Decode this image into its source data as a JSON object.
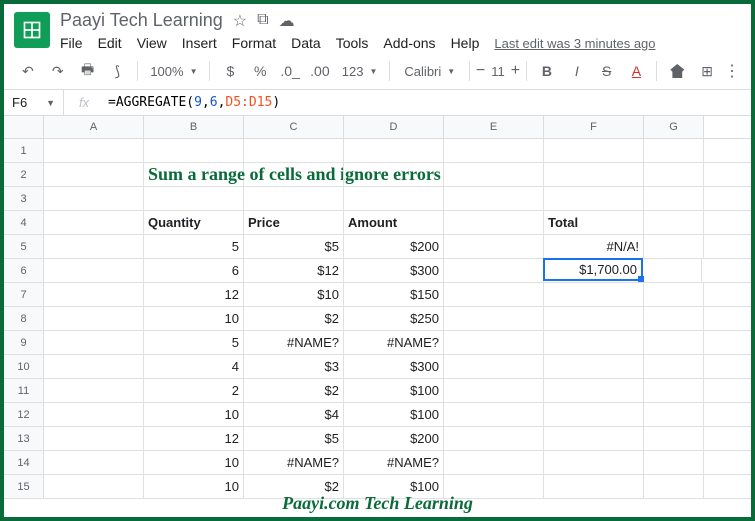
{
  "doc": {
    "title": "Paayi Tech Learning",
    "last_edit": "Last edit was 3 minutes ago"
  },
  "menu": [
    "File",
    "Edit",
    "View",
    "Insert",
    "Format",
    "Data",
    "Tools",
    "Add-ons",
    "Help"
  ],
  "toolbar": {
    "zoom": "100%",
    "font": "Calibri",
    "size": "11"
  },
  "formula_bar": {
    "cell_ref": "F6",
    "prefix": "=AGGREGATE(",
    "arg1": "9",
    "arg2": "6",
    "range": "D5:D15",
    "suffix": ")"
  },
  "columns": [
    "A",
    "B",
    "C",
    "D",
    "E",
    "F",
    "G"
  ],
  "col_widths": {
    "A": 100,
    "B": 100,
    "C": 100,
    "D": 100,
    "E": 100,
    "F": 100,
    "G": 60
  },
  "title_text": "Sum a range of cells and ignore errors",
  "headers": {
    "B": "Quantity",
    "C": "Price",
    "D": "Amount",
    "F": "Total"
  },
  "rows": [
    {
      "n": 1
    },
    {
      "n": 2,
      "title": true
    },
    {
      "n": 3
    },
    {
      "n": 4,
      "header": true
    },
    {
      "n": 5,
      "B": "5",
      "C": "$5",
      "D": "$200",
      "F": "#N/A!"
    },
    {
      "n": 6,
      "B": "6",
      "C": "$12",
      "D": "$300",
      "F": "$1,700.00",
      "selected": true
    },
    {
      "n": 7,
      "B": "12",
      "C": "$10",
      "D": "$150"
    },
    {
      "n": 8,
      "B": "10",
      "C": "$2",
      "D": "$250"
    },
    {
      "n": 9,
      "B": "5",
      "C": "#NAME?",
      "D": "#NAME?"
    },
    {
      "n": 10,
      "B": "4",
      "C": "$3",
      "D": "$300"
    },
    {
      "n": 11,
      "B": "2",
      "C": "$2",
      "D": "$100"
    },
    {
      "n": 12,
      "B": "10",
      "C": "$4",
      "D": "$100"
    },
    {
      "n": 13,
      "B": "12",
      "C": "$5",
      "D": "$200"
    },
    {
      "n": 14,
      "B": "10",
      "C": "#NAME?",
      "D": "#NAME?"
    },
    {
      "n": 15,
      "B": "10",
      "C": "$2",
      "D": "$100"
    }
  ],
  "footer": "Paayi.com Tech Learning",
  "colors": {
    "brand": "#0a6b3a",
    "select": "#1a73e8"
  }
}
